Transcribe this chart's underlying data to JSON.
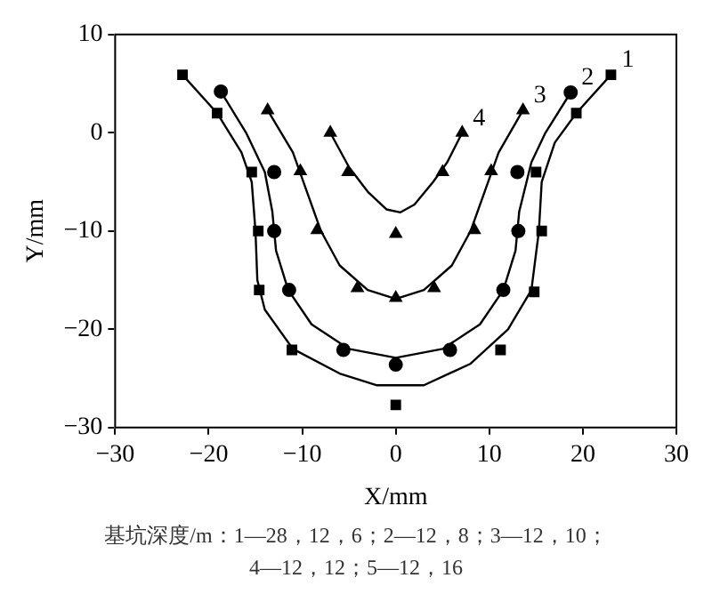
{
  "chart_data": {
    "type": "scatter",
    "xlabel": "X/mm",
    "ylabel": "Y/mm",
    "xlim": [
      -30,
      30
    ],
    "xticks": [
      -30,
      -20,
      -10,
      0,
      10,
      20,
      30
    ],
    "ylim": [
      -30,
      10
    ],
    "yticks": [
      -30,
      -20,
      -10,
      0,
      10
    ],
    "grid": false,
    "legend": false,
    "series": [
      {
        "name": "1",
        "color": "#000000",
        "marker": "square",
        "x": [
          -22.8,
          -19.1,
          -15.4,
          -14.7,
          -14.6,
          -11.1,
          0,
          11.2,
          14.8,
          15.6,
          15.0,
          19.3,
          23.0
        ],
        "values": [
          5.9,
          2.0,
          -4.0,
          -10.0,
          -16.0,
          -22.1,
          -27.7,
          -22.1,
          -16.2,
          -10.0,
          -4.0,
          2.0,
          5.9
        ]
      },
      {
        "name": "2",
        "color": "#000000",
        "marker": "circle",
        "x": [
          -18.7,
          -13.0,
          -13.0,
          -11.4,
          -5.6,
          0,
          5.8,
          11.5,
          13.1,
          13.0,
          18.7
        ],
        "values": [
          4.2,
          -4.0,
          -10.0,
          -16.0,
          -22.1,
          -23.6,
          -22.1,
          -16.0,
          -10.0,
          -4.0,
          4.1
        ]
      },
      {
        "name": "3",
        "color": "#000000",
        "marker": "triangle",
        "x": [
          -13.7,
          -10.2,
          -8.4,
          -4.1,
          0,
          4.1,
          8.4,
          10.2,
          13.6
        ],
        "values": [
          2.3,
          -3.9,
          -9.9,
          -15.8,
          -16.8,
          -15.8,
          -9.9,
          -3.9,
          2.3
        ]
      },
      {
        "name": "4",
        "color": "#000000",
        "marker": "triangle",
        "x": [
          -7.0,
          -5.1,
          0,
          5.0,
          7.1
        ],
        "values": [
          0,
          -4.0,
          -10.3,
          -4.0,
          0
        ]
      },
      {
        "type": "line",
        "color": "#000000",
        "marker": "none",
        "x": [
          -22.8,
          -19.1,
          -16.5,
          -15.4,
          -15.0,
          -14.8,
          -14.0,
          -11.0,
          -6.0,
          -2.0,
          3.0,
          8.0,
          12.0,
          14.5,
          15.3,
          15.6,
          17.0,
          19.3,
          23.0
        ],
        "values": [
          5.9,
          2.0,
          -2.0,
          -5.0,
          -10.0,
          -15.0,
          -18.0,
          -22.0,
          -24.5,
          -25.7,
          -25.7,
          -23.5,
          -20.0,
          -16.0,
          -10.0,
          -5.0,
          -1.0,
          2.0,
          5.9
        ]
      },
      {
        "type": "line",
        "color": "#000000",
        "marker": "none",
        "x": [
          -18.7,
          -16.0,
          -14.0,
          -13.2,
          -12.8,
          -11.5,
          -9.0,
          -5.0,
          0,
          5.0,
          9.0,
          11.5,
          12.8,
          13.2,
          14.5,
          16.0,
          18.7
        ],
        "values": [
          4.2,
          0,
          -4.0,
          -8.0,
          -12.0,
          -16.0,
          -19.5,
          -22.0,
          -22.9,
          -22.0,
          -19.5,
          -16.0,
          -12.0,
          -8.0,
          -3.0,
          0,
          4.1
        ]
      },
      {
        "type": "line",
        "color": "#000000",
        "marker": "none",
        "x": [
          -13.7,
          -11.0,
          -9.5,
          -8.0,
          -6.0,
          -3.0,
          0,
          3.0,
          6.0,
          8.0,
          9.5,
          11.0,
          13.6
        ],
        "values": [
          2.3,
          -2.0,
          -6.0,
          -10.0,
          -13.5,
          -16.0,
          -16.9,
          -16.0,
          -13.5,
          -10.0,
          -6.0,
          -2.0,
          2.3
        ]
      },
      {
        "type": "line",
        "color": "#000000",
        "marker": "none",
        "x": [
          -7.0,
          -5.0,
          -3.0,
          -1.0,
          0.5,
          2.0,
          4.0,
          5.5,
          7.1
        ],
        "values": [
          0,
          -3.5,
          -6.0,
          -7.8,
          -8.1,
          -7.3,
          -5.0,
          -3.0,
          0
        ]
      }
    ],
    "annotations": [
      "基坑深度/m：1—28，12，6；2—12，8；3—12，10；",
      "4—12，12；5—12，16"
    ]
  }
}
